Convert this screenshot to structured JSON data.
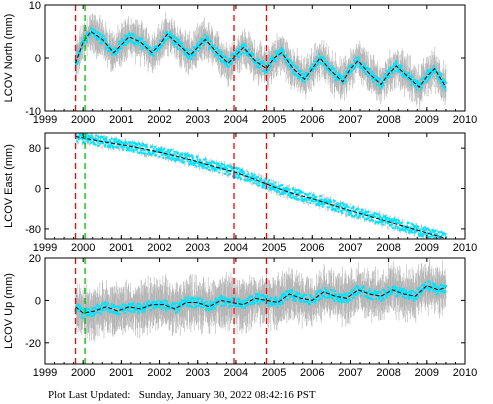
{
  "footer": {
    "label": "Plot Last Updated:",
    "timestamp": "Sunday, January 30, 2022 08:42:16 PST"
  },
  "chart_data": [
    {
      "type": "scatter",
      "ylabel": "LCOV North (mm)",
      "xlim": [
        1999,
        2010
      ],
      "ylim": [
        -10,
        10
      ],
      "xticks": [
        1999,
        2000,
        2001,
        2002,
        2003,
        2004,
        2005,
        2006,
        2007,
        2008,
        2009,
        2010
      ],
      "yticks": [
        -10,
        0,
        10
      ],
      "series": [
        {
          "style": "scatter-with-errorbars",
          "color": "#00e5ff",
          "error_color": "#b4b4b4",
          "x": [
            1999.8,
            2000.0,
            2000.2,
            2000.5,
            2000.8,
            2001.0,
            2001.2,
            2001.5,
            2001.8,
            2002.0,
            2002.2,
            2002.5,
            2002.8,
            2003.0,
            2003.2,
            2003.5,
            2003.8,
            2004.0,
            2004.2,
            2004.5,
            2004.8,
            2005.0,
            2005.2,
            2005.5,
            2005.8,
            2006.0,
            2006.2,
            2006.5,
            2006.8,
            2007.0,
            2007.2,
            2007.5,
            2007.8,
            2008.0,
            2008.2,
            2008.5,
            2008.8,
            2009.0,
            2009.2,
            2009.5
          ],
          "y": [
            -1.0,
            3.0,
            5.0,
            3.5,
            1.0,
            2.5,
            4.0,
            3.0,
            1.0,
            2.5,
            4.5,
            2.5,
            0.5,
            2.0,
            3.5,
            1.0,
            -1.0,
            0.5,
            2.0,
            -0.5,
            -2.0,
            0.0,
            1.0,
            -2.0,
            -4.0,
            -2.0,
            0.0,
            -2.5,
            -4.5,
            -2.0,
            -0.5,
            -3.0,
            -5.0,
            -3.0,
            -1.5,
            -3.5,
            -5.5,
            -3.5,
            -2.0,
            -5.5
          ]
        },
        {
          "style": "dashed-line",
          "color": "#000000",
          "x": [
            1999.8,
            2000.0,
            2000.2,
            2000.5,
            2000.8,
            2001.0,
            2001.2,
            2001.5,
            2001.8,
            2002.0,
            2002.2,
            2002.5,
            2002.8,
            2003.0,
            2003.2,
            2003.5,
            2003.8,
            2004.0,
            2004.2,
            2004.5,
            2004.8,
            2005.0,
            2005.2,
            2005.5,
            2005.8,
            2006.0,
            2006.2,
            2006.5,
            2006.8,
            2007.0,
            2007.2,
            2007.5,
            2007.8,
            2008.0,
            2008.2,
            2008.5,
            2008.8,
            2009.0,
            2009.2,
            2009.5
          ],
          "y": [
            -1.0,
            3.0,
            5.0,
            3.5,
            1.0,
            2.5,
            4.0,
            3.0,
            1.0,
            2.5,
            4.5,
            2.5,
            0.5,
            2.0,
            3.5,
            1.0,
            -1.0,
            0.5,
            2.0,
            -0.5,
            -2.0,
            0.0,
            1.0,
            -2.0,
            -4.0,
            -2.0,
            0.0,
            -2.5,
            -4.5,
            -2.0,
            -0.5,
            -3.0,
            -5.0,
            -3.0,
            -1.5,
            -3.5,
            -5.5,
            -3.5,
            -2.0,
            -5.5
          ]
        }
      ],
      "vlines": [
        {
          "x": 1999.8,
          "color": "#ff0000"
        },
        {
          "x": 2000.05,
          "color": "#00c000"
        },
        {
          "x": 2003.95,
          "color": "#ff0000"
        },
        {
          "x": 2004.8,
          "color": "#ff0000"
        }
      ]
    },
    {
      "type": "scatter",
      "ylabel": "LCOV East (mm)",
      "xlim": [
        1999,
        2010
      ],
      "ylim": [
        -100,
        110
      ],
      "xticks": [
        1999,
        2000,
        2001,
        2002,
        2003,
        2004,
        2005,
        2006,
        2007,
        2008,
        2009,
        2010
      ],
      "yticks": [
        -80,
        0,
        80
      ],
      "series": [
        {
          "style": "scatter-with-errorbars",
          "color": "#00e5ff",
          "error_color": "#b4b4b4",
          "x": [
            1999.8,
            2000.0,
            2000.5,
            2001.0,
            2001.5,
            2002.0,
            2002.5,
            2003.0,
            2003.5,
            2004.0,
            2004.5,
            2005.0,
            2005.5,
            2006.0,
            2006.5,
            2007.0,
            2007.5,
            2008.0,
            2008.5,
            2009.0,
            2009.5
          ],
          "y": [
            103,
            100,
            93,
            87,
            80,
            72,
            63,
            53,
            42,
            32,
            18,
            3,
            -10,
            -20,
            -32,
            -44,
            -55,
            -66,
            -77,
            -88,
            -99
          ]
        },
        {
          "style": "dashed-line",
          "color": "#000000",
          "x": [
            1999.8,
            2000.0,
            2000.5,
            2001.0,
            2001.5,
            2002.0,
            2002.5,
            2003.0,
            2003.5,
            2004.0,
            2004.5,
            2005.0,
            2005.5,
            2006.0,
            2006.5,
            2007.0,
            2007.5,
            2008.0,
            2008.5,
            2009.0,
            2009.5
          ],
          "y": [
            103,
            100,
            93,
            87,
            80,
            72,
            63,
            53,
            42,
            32,
            18,
            3,
            -10,
            -20,
            -32,
            -44,
            -55,
            -66,
            -77,
            -88,
            -99
          ]
        }
      ],
      "vlines": [
        {
          "x": 1999.8,
          "color": "#ff0000"
        },
        {
          "x": 2000.05,
          "color": "#00c000"
        },
        {
          "x": 2003.95,
          "color": "#ff0000"
        },
        {
          "x": 2004.8,
          "color": "#ff0000"
        }
      ]
    },
    {
      "type": "scatter",
      "ylabel": "LCOV Up (mm)",
      "xlim": [
        1999,
        2010
      ],
      "ylim": [
        -30,
        20
      ],
      "xticks": [
        1999,
        2000,
        2001,
        2002,
        2003,
        2004,
        2005,
        2006,
        2007,
        2008,
        2009,
        2010
      ],
      "yticks": [
        -20,
        0,
        20
      ],
      "series": [
        {
          "style": "scatter-with-errorbars",
          "color": "#00e5ff",
          "error_color": "#b4b4b4",
          "x": [
            1999.8,
            2000.0,
            2000.3,
            2000.6,
            2000.9,
            2001.2,
            2001.5,
            2001.8,
            2002.1,
            2002.4,
            2002.7,
            2003.0,
            2003.3,
            2003.6,
            2003.9,
            2004.2,
            2004.5,
            2004.8,
            2005.1,
            2005.4,
            2005.7,
            2006.0,
            2006.3,
            2006.6,
            2006.9,
            2007.2,
            2007.5,
            2007.8,
            2008.1,
            2008.4,
            2008.7,
            2009.0,
            2009.3,
            2009.5
          ],
          "y": [
            -3,
            -6,
            -5,
            -3,
            -5,
            -3,
            -4,
            -2,
            -2,
            -4,
            -1,
            -1,
            -3,
            0,
            -1,
            -2,
            1,
            0,
            -1,
            3,
            1,
            0,
            4,
            2,
            1,
            5,
            3,
            2,
            5,
            3,
            2,
            7,
            5,
            6
          ]
        },
        {
          "style": "dashed-line",
          "color": "#000000",
          "x": [
            1999.8,
            2000.0,
            2000.3,
            2000.6,
            2000.9,
            2001.2,
            2001.5,
            2001.8,
            2002.1,
            2002.4,
            2002.7,
            2003.0,
            2003.3,
            2003.6,
            2003.9,
            2004.2,
            2004.5,
            2004.8,
            2005.1,
            2005.4,
            2005.7,
            2006.0,
            2006.3,
            2006.6,
            2006.9,
            2007.2,
            2007.5,
            2007.8,
            2008.1,
            2008.4,
            2008.7,
            2009.0,
            2009.3,
            2009.5
          ],
          "y": [
            -3,
            -6,
            -5,
            -3,
            -5,
            -3,
            -4,
            -2,
            -2,
            -4,
            -1,
            -1,
            -3,
            0,
            -1,
            -2,
            1,
            0,
            -1,
            3,
            1,
            0,
            4,
            2,
            1,
            5,
            3,
            2,
            5,
            3,
            2,
            7,
            5,
            6
          ]
        }
      ],
      "vlines": [
        {
          "x": 1999.8,
          "color": "#ff0000"
        },
        {
          "x": 2000.05,
          "color": "#00c000"
        },
        {
          "x": 2003.95,
          "color": "#ff0000"
        },
        {
          "x": 2004.8,
          "color": "#ff0000"
        }
      ]
    }
  ]
}
